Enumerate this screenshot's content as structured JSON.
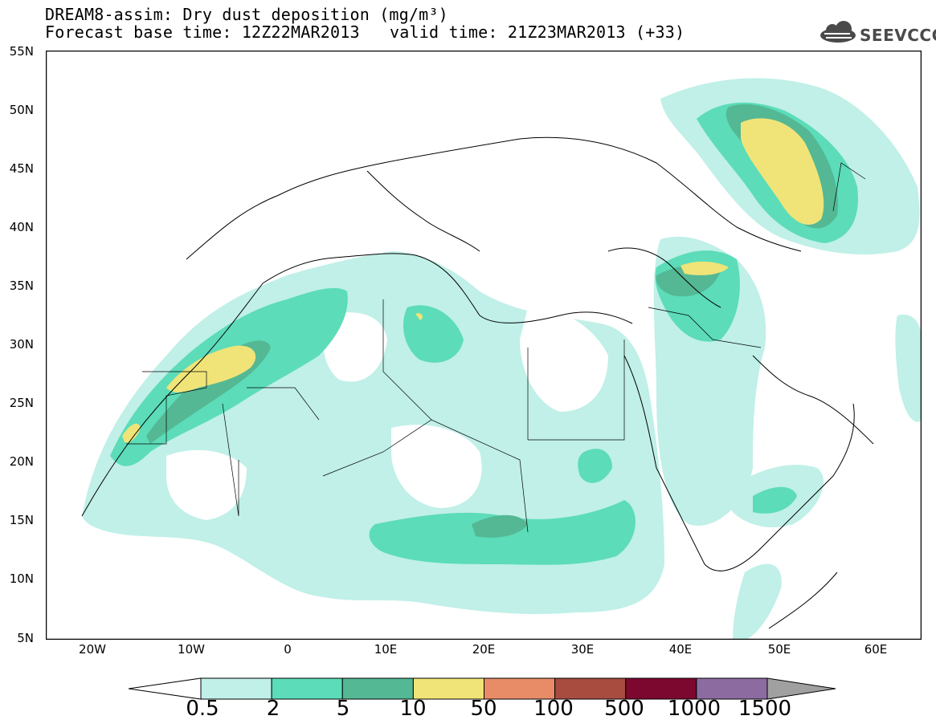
{
  "header": {
    "line1": "DREAM8-assim: Dry dust deposition (mg/m³)",
    "line2": "Forecast base time: 12Z22MAR2013",
    "line3": "valid time: 21Z23MAR2013 (+33)"
  },
  "logo": {
    "text": "SEEVCCC",
    "icon": "cloud-logo-icon"
  },
  "map": {
    "lat_labels": [
      "55N",
      "50N",
      "45N",
      "40N",
      "35N",
      "30N",
      "25N",
      "20N",
      "15N",
      "10N",
      "5N"
    ],
    "lon_labels": [
      "20W",
      "10W",
      "0",
      "10E",
      "20E",
      "30E",
      "40E",
      "50E",
      "60E"
    ],
    "colors": {
      "land_outline": "#000000",
      "background": "#ffffff"
    }
  },
  "colorbar": {
    "labels": [
      "0.5",
      "2",
      "5",
      "10",
      "50",
      "100",
      "500",
      "1000",
      "1500"
    ],
    "colors": [
      "#c0f0e8",
      "#5cdcb8",
      "#54b894",
      "#f0e478",
      "#e88c68",
      "#a84c40",
      "#7c0830",
      "#8c6ca0",
      "#a0a0a0"
    ]
  }
}
